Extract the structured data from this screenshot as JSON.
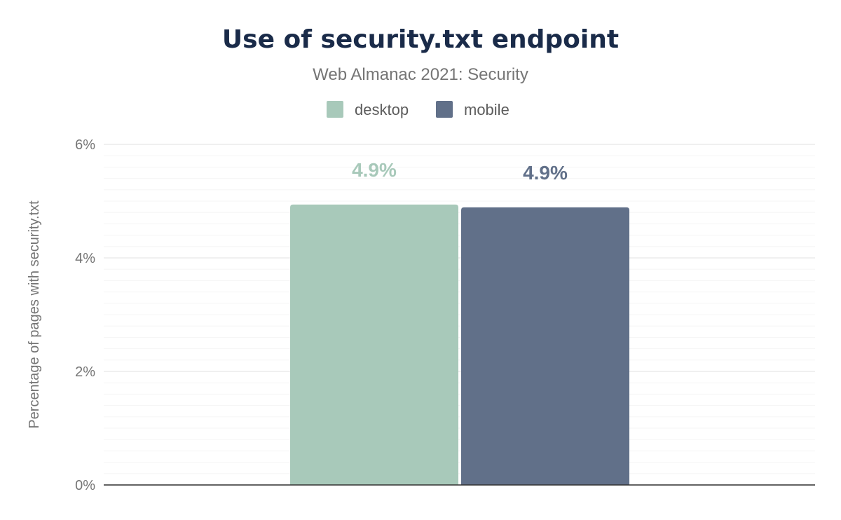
{
  "chart_data": {
    "type": "bar",
    "title": "Use of security.txt endpoint",
    "subtitle": "Web Almanac 2021: Security",
    "xlabel": "",
    "ylabel": "Percentage of pages with security.txt",
    "ylim": [
      0,
      6
    ],
    "yticks": [
      0,
      2,
      4,
      6
    ],
    "ytick_labels": [
      "0%",
      "2%",
      "4%",
      "6%"
    ],
    "grid": true,
    "legend": "top-center",
    "categories": [
      ""
    ],
    "series": [
      {
        "name": "desktop",
        "values": [
          4.94
        ],
        "label": "4.9%",
        "color": "#a8c9ba"
      },
      {
        "name": "mobile",
        "values": [
          4.89
        ],
        "label": "4.9%",
        "color": "#617089"
      }
    ]
  }
}
